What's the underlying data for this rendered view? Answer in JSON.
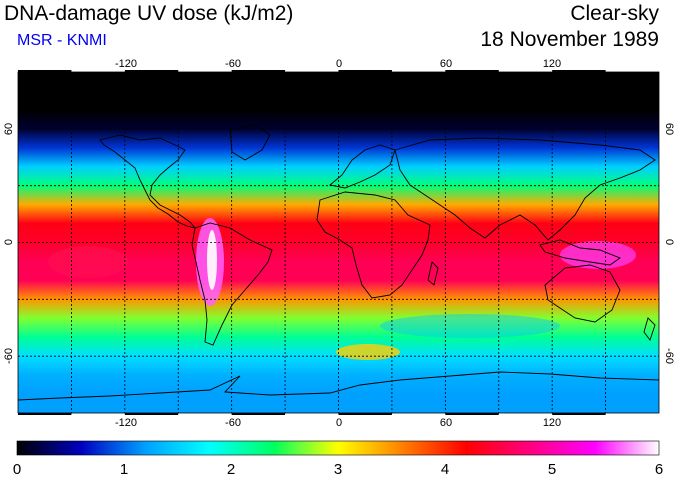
{
  "header": {
    "title": "DNA-damage UV dose (kJ/m2)",
    "subtitle": "MSR - KNMI",
    "condition": "Clear-sky",
    "date": "18 November 1989"
  },
  "map": {
    "projection": "equirectangular",
    "lon_range": [
      -180,
      180
    ],
    "lat_range": [
      -90,
      90
    ],
    "lon_ticks": [
      "-120",
      "-60",
      "0",
      "60",
      "120"
    ],
    "lat_ticks": [
      "60",
      "0",
      "-60"
    ],
    "gridlines": "dashed, every 30 degrees",
    "colorbar": {
      "min": 0,
      "max": 6,
      "tick_labels": [
        "0",
        "1",
        "2",
        "3",
        "4",
        "5",
        "6"
      ],
      "colors": [
        "#000000",
        "#0000c0",
        "#00a0ff",
        "#00ffff",
        "#00ff60",
        "#ffff00",
        "#ff8000",
        "#ff0000",
        "#ff0080",
        "#ff00ff",
        "#ffffff"
      ]
    },
    "uv_profile_by_latitude": [
      {
        "lat": 90,
        "dose": 0.0
      },
      {
        "lat": 70,
        "dose": 0.0
      },
      {
        "lat": 60,
        "dose": 0.15
      },
      {
        "lat": 50,
        "dose": 0.8
      },
      {
        "lat": 40,
        "dose": 1.5
      },
      {
        "lat": 30,
        "dose": 2.3
      },
      {
        "lat": 20,
        "dose": 3.4
      },
      {
        "lat": 10,
        "dose": 4.3
      },
      {
        "lat": 0,
        "dose": 4.4
      },
      {
        "lat": -10,
        "dose": 4.6
      },
      {
        "lat": -20,
        "dose": 4.6
      },
      {
        "lat": -30,
        "dose": 3.5
      },
      {
        "lat": -40,
        "dose": 2.7
      },
      {
        "lat": -50,
        "dose": 2.2
      },
      {
        "lat": -60,
        "dose": 1.6
      },
      {
        "lat": -70,
        "dose": 1.3
      },
      {
        "lat": -80,
        "dose": 1.2
      },
      {
        "lat": -90,
        "dose": 1.2
      }
    ]
  }
}
